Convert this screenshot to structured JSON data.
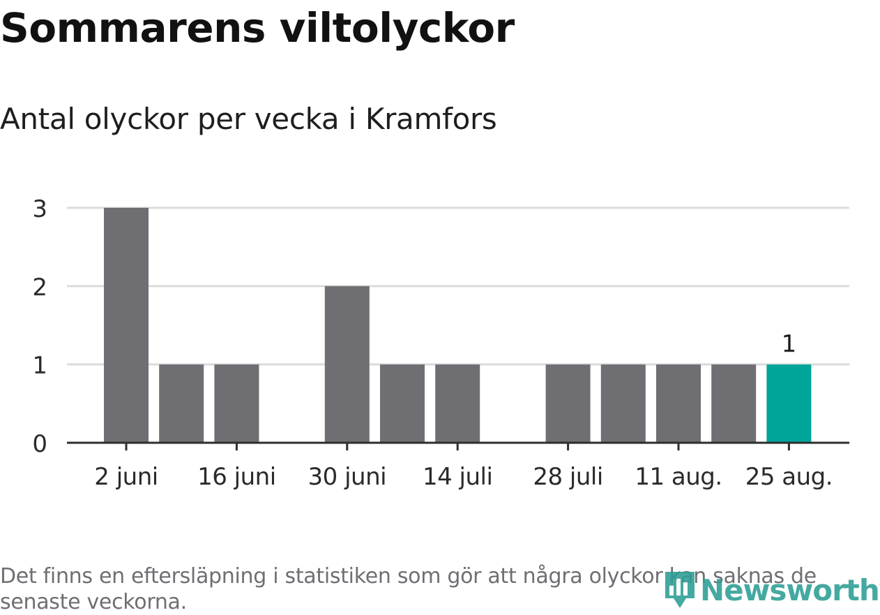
{
  "title": "Sommarens viltolyckor",
  "subtitle": "Antal olyckor per vecka i Kramfors",
  "note": "Det finns en eftersläpning i statistiken som gör att några olyckor kan saknas de senaste veckorna.",
  "logo": {
    "text": "Newsworthy",
    "icon": "bar-chart-pin-icon",
    "color": "#2c9e95"
  },
  "chart_data": {
    "type": "bar",
    "categories": [
      "2 juni",
      "9 juni",
      "16 juni",
      "23 juni",
      "30 juni",
      "7 juli",
      "14 juli",
      "21 juli",
      "28 juli",
      "4 aug.",
      "11 aug.",
      "18 aug.",
      "25 aug."
    ],
    "values": [
      3,
      1,
      1,
      0,
      2,
      1,
      1,
      0,
      1,
      1,
      1,
      1,
      1
    ],
    "tick_labels": [
      "2 juni",
      "16 juni",
      "30 juni",
      "14 juli",
      "28 juli",
      "11 aug.",
      "25 aug."
    ],
    "yticks": [
      0,
      1,
      2,
      3
    ],
    "ylim": [
      0,
      3
    ],
    "highlight_index": 12,
    "highlight_label": "1",
    "bar_color": "#6f6e73",
    "highlight_color": "#00a59a",
    "grid": true,
    "xlabel": "",
    "ylabel": ""
  }
}
